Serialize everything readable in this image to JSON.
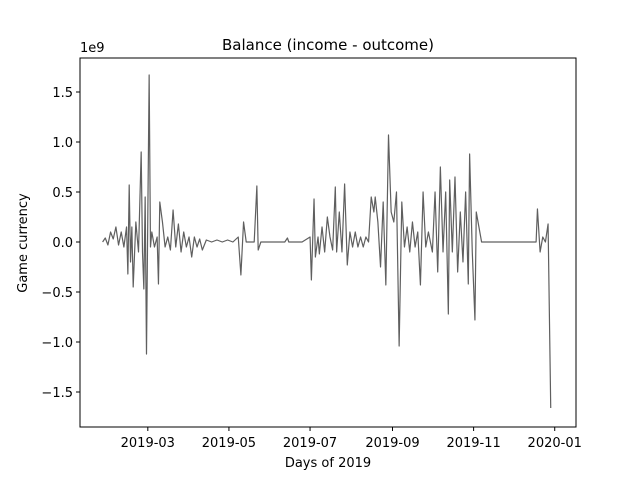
{
  "chart_data": {
    "type": "line",
    "title": "Balance (income - outcome)",
    "x_label": "Days of 2019",
    "y_label": "Game currency",
    "y_offset_label": "1e9",
    "color": "#5f5f5f",
    "xlim": [
      "2019-01-09",
      "2020-01-17"
    ],
    "xticks": [
      {
        "value": "2019-03-01",
        "label": "2019-03"
      },
      {
        "value": "2019-05-01",
        "label": "2019-05"
      },
      {
        "value": "2019-07-01",
        "label": "2019-07"
      },
      {
        "value": "2019-09-01",
        "label": "2019-09"
      },
      {
        "value": "2019-11-01",
        "label": "2019-11"
      },
      {
        "value": "2020-01-01",
        "label": "2020-01"
      }
    ],
    "ylim": [
      -1.85,
      1.84
    ],
    "yticks": [
      {
        "value": -1.5,
        "label": "−1.5"
      },
      {
        "value": -1,
        "label": "−1.0"
      },
      {
        "value": -0.5,
        "label": "−0.5"
      },
      {
        "value": 0,
        "label": "0.0"
      },
      0.5,
      {
        "value": 1,
        "label": "1.0"
      },
      1.5
    ],
    "x": [
      "2019-01-26",
      "2019-01-28",
      "2019-01-30",
      "2019-02-01",
      "2019-02-03",
      "2019-02-05",
      "2019-02-07",
      "2019-02-09",
      "2019-02-11",
      "2019-02-13",
      "2019-02-14",
      "2019-02-15",
      "2019-02-16",
      "2019-02-17",
      "2019-02-18",
      "2019-02-20",
      "2019-02-22",
      "2019-02-24",
      "2019-02-25",
      "2019-02-26",
      "2019-02-27",
      "2019-02-28",
      "2019-03-02",
      "2019-03-03",
      "2019-03-04",
      "2019-03-06",
      "2019-03-08",
      "2019-03-09",
      "2019-03-10",
      "2019-03-12",
      "2019-03-14",
      "2019-03-16",
      "2019-03-18",
      "2019-03-20",
      "2019-03-22",
      "2019-03-24",
      "2019-03-26",
      "2019-03-28",
      "2019-03-30",
      "2019-04-01",
      "2019-04-03",
      "2019-04-05",
      "2019-04-07",
      "2019-04-09",
      "2019-04-11",
      "2019-04-14",
      "2019-04-18",
      "2019-04-22",
      "2019-04-26",
      "2019-04-30",
      "2019-05-04",
      "2019-05-08",
      "2019-05-10",
      "2019-05-12",
      "2019-05-14",
      "2019-05-20",
      "2019-05-22",
      "2019-05-23",
      "2019-05-25",
      "2019-06-12",
      "2019-06-14",
      "2019-06-15",
      "2019-06-25",
      "2019-07-01",
      "2019-07-02",
      "2019-07-04",
      "2019-07-05",
      "2019-07-07",
      "2019-07-08",
      "2019-07-10",
      "2019-07-12",
      "2019-07-14",
      "2019-07-16",
      "2019-07-18",
      "2019-07-20",
      "2019-07-21",
      "2019-07-23",
      "2019-07-25",
      "2019-07-27",
      "2019-07-29",
      "2019-07-31",
      "2019-08-02",
      "2019-08-04",
      "2019-08-06",
      "2019-08-08",
      "2019-08-10",
      "2019-08-12",
      "2019-08-14",
      "2019-08-16",
      "2019-08-18",
      "2019-08-19",
      "2019-08-21",
      "2019-08-23",
      "2019-08-25",
      "2019-08-27",
      "2019-08-29",
      "2019-08-31",
      "2019-09-02",
      "2019-09-04",
      "2019-09-06",
      "2019-09-08",
      "2019-09-10",
      "2019-09-12",
      "2019-09-14",
      "2019-09-16",
      "2019-09-18",
      "2019-09-20",
      "2019-09-22",
      "2019-09-24",
      "2019-09-26",
      "2019-09-28",
      "2019-10-01",
      "2019-10-03",
      "2019-10-05",
      "2019-10-07",
      "2019-10-09",
      "2019-10-11",
      "2019-10-13",
      "2019-10-14",
      "2019-10-16",
      "2019-10-18",
      "2019-10-20",
      "2019-10-22",
      "2019-10-24",
      "2019-10-26",
      "2019-10-28",
      "2019-10-29",
      "2019-10-31",
      "2019-11-02",
      "2019-11-03",
      "2019-11-05",
      "2019-11-07",
      "2019-12-18",
      "2019-12-19",
      "2019-12-21",
      "2019-12-23",
      "2019-12-25",
      "2019-12-27",
      "2019-12-29"
    ],
    "values": [
      0.0,
      0.04,
      -0.03,
      0.1,
      0.03,
      0.15,
      -0.03,
      0.1,
      -0.05,
      0.15,
      -0.32,
      0.57,
      -0.2,
      0.15,
      -0.45,
      0.2,
      -0.1,
      0.9,
      -0.1,
      -0.47,
      0.45,
      -1.12,
      1.67,
      -0.05,
      0.1,
      -0.05,
      0.05,
      -0.42,
      0.4,
      0.2,
      -0.05,
      0.05,
      -0.08,
      0.32,
      -0.05,
      0.18,
      -0.1,
      0.1,
      -0.05,
      0.05,
      -0.15,
      0.05,
      -0.05,
      0.03,
      -0.08,
      0.02,
      0.0,
      0.02,
      0.0,
      0.02,
      0.0,
      0.05,
      -0.33,
      0.2,
      0.0,
      0.0,
      0.56,
      -0.08,
      0.0,
      0.0,
      0.04,
      0.0,
      0.0,
      0.05,
      -0.38,
      0.43,
      -0.15,
      0.05,
      -0.12,
      0.15,
      -0.1,
      0.25,
      0.05,
      -0.08,
      0.55,
      -0.1,
      0.3,
      -0.1,
      0.58,
      -0.23,
      0.1,
      -0.05,
      0.1,
      -0.05,
      0.05,
      -0.05,
      0.05,
      0.0,
      0.45,
      0.3,
      0.45,
      0.2,
      -0.25,
      0.4,
      -0.43,
      1.07,
      0.3,
      0.2,
      0.5,
      -1.04,
      0.4,
      -0.05,
      0.15,
      -0.1,
      0.2,
      -0.05,
      0.1,
      -0.43,
      0.5,
      -0.05,
      0.1,
      -0.1,
      0.5,
      -0.3,
      0.75,
      -0.1,
      0.5,
      -0.72,
      0.62,
      -0.1,
      0.65,
      -0.3,
      0.3,
      -0.2,
      0.5,
      -0.42,
      0.88,
      -0.1,
      -0.78,
      0.3,
      0.15,
      0.0,
      0.0,
      0.33,
      -0.1,
      0.05,
      0.0,
      0.18,
      -1.66
    ]
  }
}
